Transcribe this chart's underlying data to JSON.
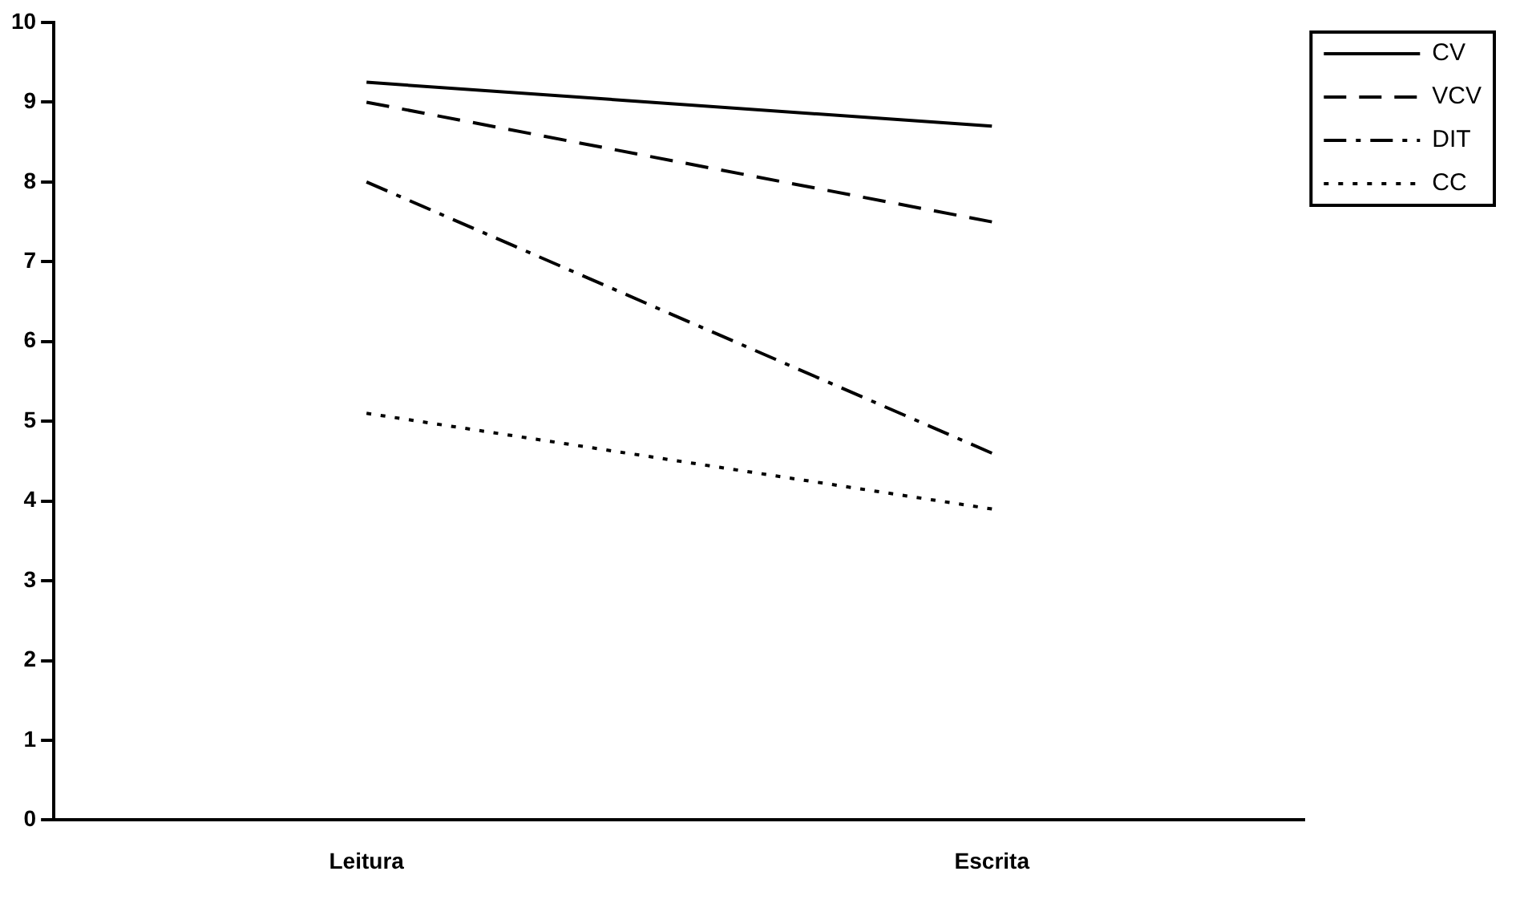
{
  "chart_data": {
    "type": "line",
    "categories": [
      "Leitura",
      "Escrita"
    ],
    "series": [
      {
        "name": "CV",
        "color": "#000000",
        "line_style": "solid",
        "values": [
          9.25,
          8.7
        ]
      },
      {
        "name": "VCV",
        "color": "#000000",
        "line_style": "dashed",
        "values": [
          9.0,
          7.5
        ]
      },
      {
        "name": "DIT",
        "color": "#000000",
        "line_style": "dashdot",
        "values": [
          8.0,
          4.6
        ]
      },
      {
        "name": "CC",
        "color": "#000000",
        "line_style": "dotted",
        "values": [
          5.1,
          3.9
        ]
      }
    ],
    "ylim": [
      0,
      10
    ],
    "yticks": [
      0,
      1,
      2,
      3,
      4,
      5,
      6,
      7,
      8,
      9,
      10
    ],
    "grid": false,
    "legend": "top right",
    "marker": "none"
  }
}
